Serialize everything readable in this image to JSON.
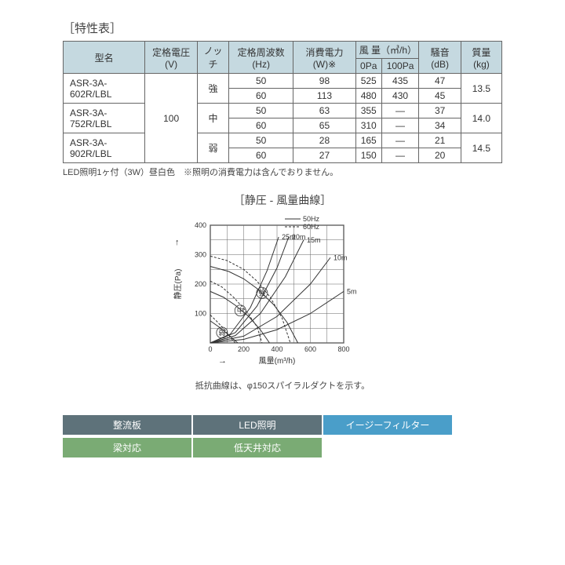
{
  "title": "［特性表］",
  "table": {
    "headers": {
      "model": "型名",
      "voltage": "定格電圧\n(V)",
      "notch": "ノッチ",
      "freq": "定格周波数\n(Hz)",
      "power": "消費電力\n(W)※",
      "airflow": "風 量（㎥/h）",
      "airflow_0pa": "0Pa",
      "airflow_100pa": "100Pa",
      "noise": "騒音\n(dB)",
      "mass": "質量\n(kg)"
    },
    "models": [
      "ASR-3A-602R/LBL",
      "ASR-3A-752R/LBL",
      "ASR-3A-902R/LBL"
    ],
    "voltage": "100",
    "notches": [
      "強",
      "中",
      "弱"
    ],
    "rows": [
      {
        "freq": "50",
        "power": "98",
        "af0": "525",
        "af100": "435",
        "noise": "47"
      },
      {
        "freq": "60",
        "power": "113",
        "af0": "480",
        "af100": "430",
        "noise": "45"
      },
      {
        "freq": "50",
        "power": "63",
        "af0": "355",
        "af100": "—",
        "noise": "37"
      },
      {
        "freq": "60",
        "power": "65",
        "af0": "310",
        "af100": "—",
        "noise": "34"
      },
      {
        "freq": "50",
        "power": "28",
        "af0": "165",
        "af100": "—",
        "noise": "21"
      },
      {
        "freq": "60",
        "power": "27",
        "af0": "150",
        "af100": "—",
        "noise": "20"
      }
    ],
    "masses": [
      "13.5",
      "14.0",
      "14.5"
    ]
  },
  "footnote": "LED照明1ヶ付（3W）昼白色　※照明の消費電力は含んでおりません。",
  "chart": {
    "title": "［静圧 - 風量曲線］",
    "legend_50": "50Hz",
    "legend_60": "60Hz",
    "ylabel": "静圧(Pa)",
    "xlabel": "風量(m³/h)",
    "ylim": [
      0,
      400
    ],
    "yticks": [
      0,
      100,
      200,
      300,
      400
    ],
    "yticks_minor": [
      50,
      150,
      250,
      350
    ],
    "xlim": [
      0,
      800
    ],
    "xticks": [
      0,
      200,
      400,
      600,
      800
    ],
    "xticks_minor": [
      100,
      300,
      500,
      700
    ],
    "resistance_labels": [
      "5m",
      "10m",
      "15m",
      "20m",
      "25m"
    ],
    "notch_labels": [
      "強",
      "中",
      "弱"
    ],
    "colors": {
      "axis": "#333333",
      "grid": "#666666",
      "curve": "#333333",
      "text": "#333333",
      "background": "#ffffff"
    },
    "line_width": 1,
    "fan_curves_50hz": [
      {
        "points": [
          [
            0,
            260
          ],
          [
            110,
            243
          ],
          [
            200,
            218
          ],
          [
            280,
            185
          ],
          [
            380,
            130
          ],
          [
            460,
            70
          ],
          [
            525,
            0
          ]
        ]
      },
      {
        "points": [
          [
            0,
            175
          ],
          [
            80,
            155
          ],
          [
            150,
            128
          ],
          [
            230,
            90
          ],
          [
            300,
            45
          ],
          [
            355,
            0
          ]
        ]
      },
      {
        "points": [
          [
            0,
            75
          ],
          [
            50,
            55
          ],
          [
            100,
            32
          ],
          [
            140,
            12
          ],
          [
            165,
            0
          ]
        ]
      }
    ],
    "fan_curves_60hz": [
      {
        "points": [
          [
            0,
            295
          ],
          [
            100,
            280
          ],
          [
            200,
            250
          ],
          [
            280,
            210
          ],
          [
            360,
            155
          ],
          [
            430,
            85
          ],
          [
            480,
            0
          ]
        ]
      },
      {
        "points": [
          [
            0,
            210
          ],
          [
            70,
            190
          ],
          [
            140,
            155
          ],
          [
            220,
            105
          ],
          [
            280,
            55
          ],
          [
            310,
            0
          ]
        ]
      },
      {
        "points": [
          [
            0,
            95
          ],
          [
            45,
            70
          ],
          [
            90,
            42
          ],
          [
            125,
            15
          ],
          [
            150,
            0
          ]
        ]
      }
    ],
    "resistance_curves": [
      {
        "label": "5m",
        "points": [
          [
            0,
            0
          ],
          [
            200,
            12
          ],
          [
            400,
            45
          ],
          [
            600,
            100
          ],
          [
            800,
            175
          ]
        ]
      },
      {
        "label": "10m",
        "points": [
          [
            0,
            0
          ],
          [
            200,
            23
          ],
          [
            400,
            90
          ],
          [
            600,
            200
          ],
          [
            720,
            290
          ]
        ]
      },
      {
        "label": "15m",
        "points": [
          [
            0,
            0
          ],
          [
            150,
            25
          ],
          [
            300,
            100
          ],
          [
            450,
            225
          ],
          [
            560,
            350
          ]
        ]
      },
      {
        "label": "20m",
        "points": [
          [
            0,
            0
          ],
          [
            150,
            35
          ],
          [
            280,
            125
          ],
          [
            400,
            255
          ],
          [
            470,
            360
          ]
        ]
      },
      {
        "label": "25m",
        "points": [
          [
            0,
            0
          ],
          [
            120,
            30
          ],
          [
            240,
            120
          ],
          [
            340,
            245
          ],
          [
            410,
            360
          ]
        ]
      }
    ],
    "caption": "抵抗曲線は、φ150スパイラルダクトを示す。"
  },
  "tags": [
    {
      "label": "整流板",
      "cls": "gray"
    },
    {
      "label": "LED照明",
      "cls": "gray"
    },
    {
      "label": "イージーフィルター",
      "cls": "blue"
    },
    {
      "label": "梁対応",
      "cls": "green"
    },
    {
      "label": "低天井対応",
      "cls": "green"
    }
  ]
}
